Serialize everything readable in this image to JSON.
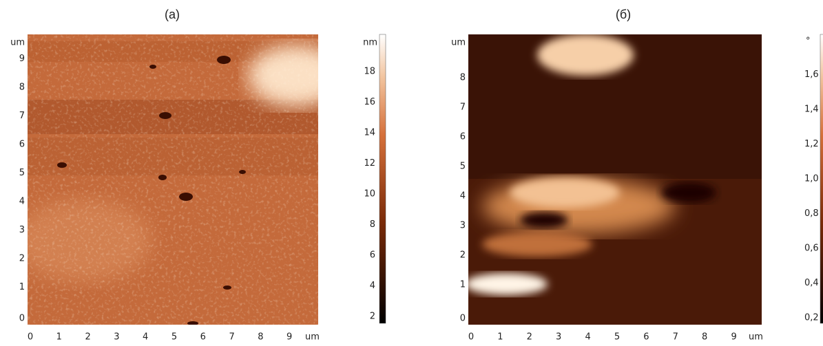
{
  "panels": [
    {
      "title": "(a)",
      "x_ticks": [
        "0",
        "1",
        "2",
        "3",
        "4",
        "5",
        "6",
        "7",
        "8",
        "9"
      ],
      "x_unit": "um",
      "y_ticks": [
        "0",
        "1",
        "2",
        "3",
        "4",
        "5",
        "6",
        "7",
        "8",
        "9"
      ],
      "y_unit": "um",
      "colorbar": {
        "unit": "nm",
        "ticks": [
          "2",
          "4",
          "6",
          "8",
          "10",
          "12",
          "14",
          "16",
          "18"
        ]
      }
    },
    {
      "title": "(б)",
      "x_ticks": [
        "0",
        "1",
        "2",
        "3",
        "4",
        "5",
        "6",
        "7",
        "8",
        "9"
      ],
      "x_unit": "um",
      "y_ticks": [
        "0",
        "1",
        "2",
        "3",
        "4",
        "5",
        "6",
        "7",
        "8"
      ],
      "y_unit": "um",
      "colorbar": {
        "unit": "°",
        "ticks": [
          "0,2",
          "0,4",
          "0,6",
          "0,8",
          "1,0",
          "1,2",
          "1,4",
          "1,6"
        ]
      }
    }
  ]
}
